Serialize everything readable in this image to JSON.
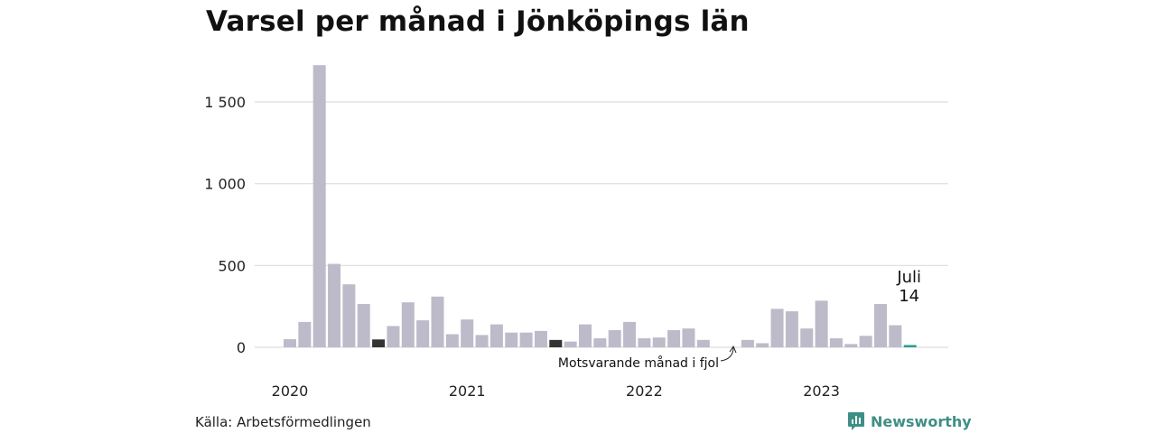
{
  "chart_data": {
    "type": "bar",
    "title": "Varsel per månad i Jönköpings län",
    "x_tick_labels": [
      "2020",
      "2021",
      "2022",
      "2023"
    ],
    "y_tick_labels": [
      "0",
      "500",
      "1 000",
      "1 500"
    ],
    "y_ticks": [
      0,
      500,
      1000,
      1500
    ],
    "ylim": [
      0,
      1750
    ],
    "grid": true,
    "colors": {
      "default": "#bdbbc9",
      "same_month_previous_years": "#333333",
      "latest": "#2e9c94"
    },
    "series": [
      {
        "values": [
          50,
          155,
          1725,
          510,
          385,
          265,
          48,
          130,
          275,
          165,
          310,
          80,
          170,
          75,
          140,
          90,
          90,
          100,
          45,
          35,
          140,
          55,
          105,
          155,
          55,
          60,
          105,
          115,
          45,
          0,
          0,
          45,
          25,
          235,
          220,
          115,
          285,
          55,
          20,
          70,
          265,
          135,
          14
        ],
        "start": "2020-01"
      }
    ],
    "highlight_indices": [
      6,
      18
    ],
    "latest_index": 42,
    "annotations": {
      "previous_year": "Motsvarande månad i fjol",
      "latest_month": "Juli",
      "latest_value": "14"
    }
  },
  "footer": {
    "source": "Källa: Arbetsförmedlingen",
    "brand": "Newsworthy",
    "brand_icon": "newsworthy-logo-icon"
  }
}
